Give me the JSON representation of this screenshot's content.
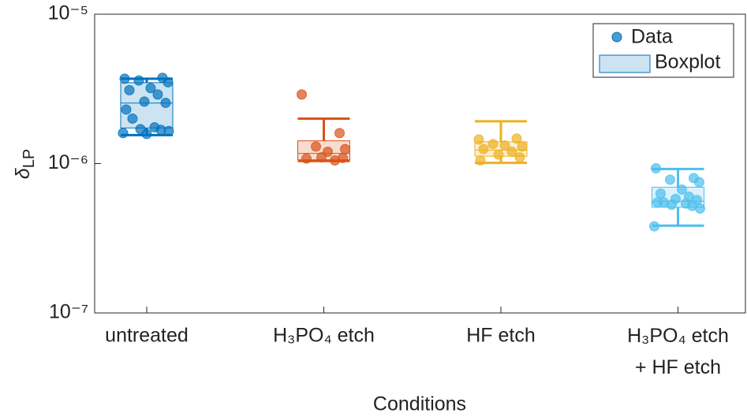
{
  "chart_data": {
    "type": "boxplot",
    "x_label": "Conditions",
    "y_label": "δ",
    "y_label_sub": "LP",
    "log_y": true,
    "ylim": [
      1e-07,
      1e-05
    ],
    "yticks": [
      {
        "value": 1e-07,
        "label": "10⁻⁷"
      },
      {
        "value": 1e-06,
        "label": "10⁻⁶"
      },
      {
        "value": 1e-05,
        "label": "10⁻⁵"
      }
    ],
    "legend": [
      "Data",
      "Boxplot"
    ],
    "legend_position": "top-right",
    "categories": [
      "untreated",
      "H₃PO₄ etch",
      "HF etch",
      "H₃PO₄ etch\n+ HF etch"
    ],
    "series": [
      {
        "color": "#0072BD",
        "whisker_low": 1.55e-06,
        "q1": 1.73e-06,
        "median": 2.54e-06,
        "q3": 3.48e-06,
        "whisker_high": 3.7e-06,
        "points": [
          3.7e-06,
          3.75e-06,
          3.6e-06,
          3.5e-06,
          3.2e-06,
          3.1e-06,
          2.9e-06,
          2.6e-06,
          2.55e-06,
          2.3e-06,
          2e-06,
          1.75e-06,
          1.7e-06,
          1.68e-06,
          1.65e-06,
          1.6e-06,
          1.58e-06
        ]
      },
      {
        "color": "#D95319",
        "whisker_low": 1.04e-06,
        "q1": 1.06e-06,
        "median": 1.17e-06,
        "q3": 1.42e-06,
        "whisker_high": 2e-06,
        "points": [
          2.9e-06,
          1.6e-06,
          1.3e-06,
          1.25e-06,
          1.2e-06,
          1.08e-06,
          1.05e-06,
          1.1e-06,
          1.09e-06
        ]
      },
      {
        "color": "#EDB120",
        "whisker_low": 1.01e-06,
        "q1": 1.12e-06,
        "median": 1.23e-06,
        "q3": 1.4e-06,
        "whisker_high": 1.92e-06,
        "points": [
          1.45e-06,
          1.47e-06,
          1.35e-06,
          1.3e-06,
          1.32e-06,
          1.25e-06,
          1.2e-06,
          1.15e-06,
          1.1e-06,
          1.05e-06
        ]
      },
      {
        "color": "#4DBEEE",
        "whisker_low": 3.84e-07,
        "q1": 5.1e-07,
        "median": 5.6e-07,
        "q3": 6.95e-07,
        "whisker_high": 9.2e-07,
        "points": [
          9.3e-07,
          8e-07,
          7.8e-07,
          7.5e-07,
          6.7e-07,
          6.3e-07,
          6e-07,
          5.8e-07,
          5.7e-07,
          5.5e-07,
          5.5e-07,
          5.4e-07,
          5.3e-07,
          5.2e-07,
          5e-07,
          3.8e-07
        ]
      }
    ]
  }
}
